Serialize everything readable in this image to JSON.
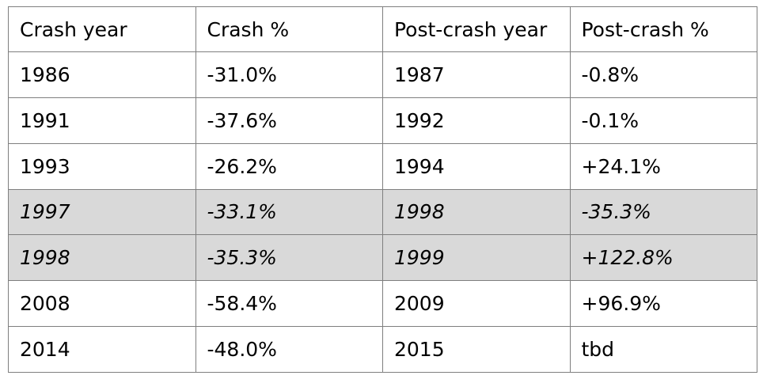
{
  "colors": {
    "highlight_bg": "#d9d9d9",
    "border": "#7f7f7f",
    "text": "#000000",
    "page_bg": "#ffffff"
  },
  "table": {
    "columns": [
      "Crash year",
      "Crash %",
      "Post-crash year",
      "Post-crash %"
    ],
    "rows": [
      {
        "cells": [
          "1986",
          "-31.0%",
          "1987",
          "-0.8%"
        ],
        "highlighted": false
      },
      {
        "cells": [
          "1991",
          "-37.6%",
          "1992",
          "-0.1%"
        ],
        "highlighted": false
      },
      {
        "cells": [
          "1993",
          "-26.2%",
          "1994",
          "+24.1%"
        ],
        "highlighted": false
      },
      {
        "cells": [
          "1997",
          "-33.1%",
          "1998",
          "-35.3%"
        ],
        "highlighted": true
      },
      {
        "cells": [
          "1998",
          "-35.3%",
          "1999",
          "+122.8%"
        ],
        "highlighted": true
      },
      {
        "cells": [
          "2008",
          "-58.4%",
          "2009",
          "+96.9%"
        ],
        "highlighted": false
      },
      {
        "cells": [
          "2014",
          "-48.0%",
          "2015",
          "tbd"
        ],
        "highlighted": false
      }
    ]
  }
}
